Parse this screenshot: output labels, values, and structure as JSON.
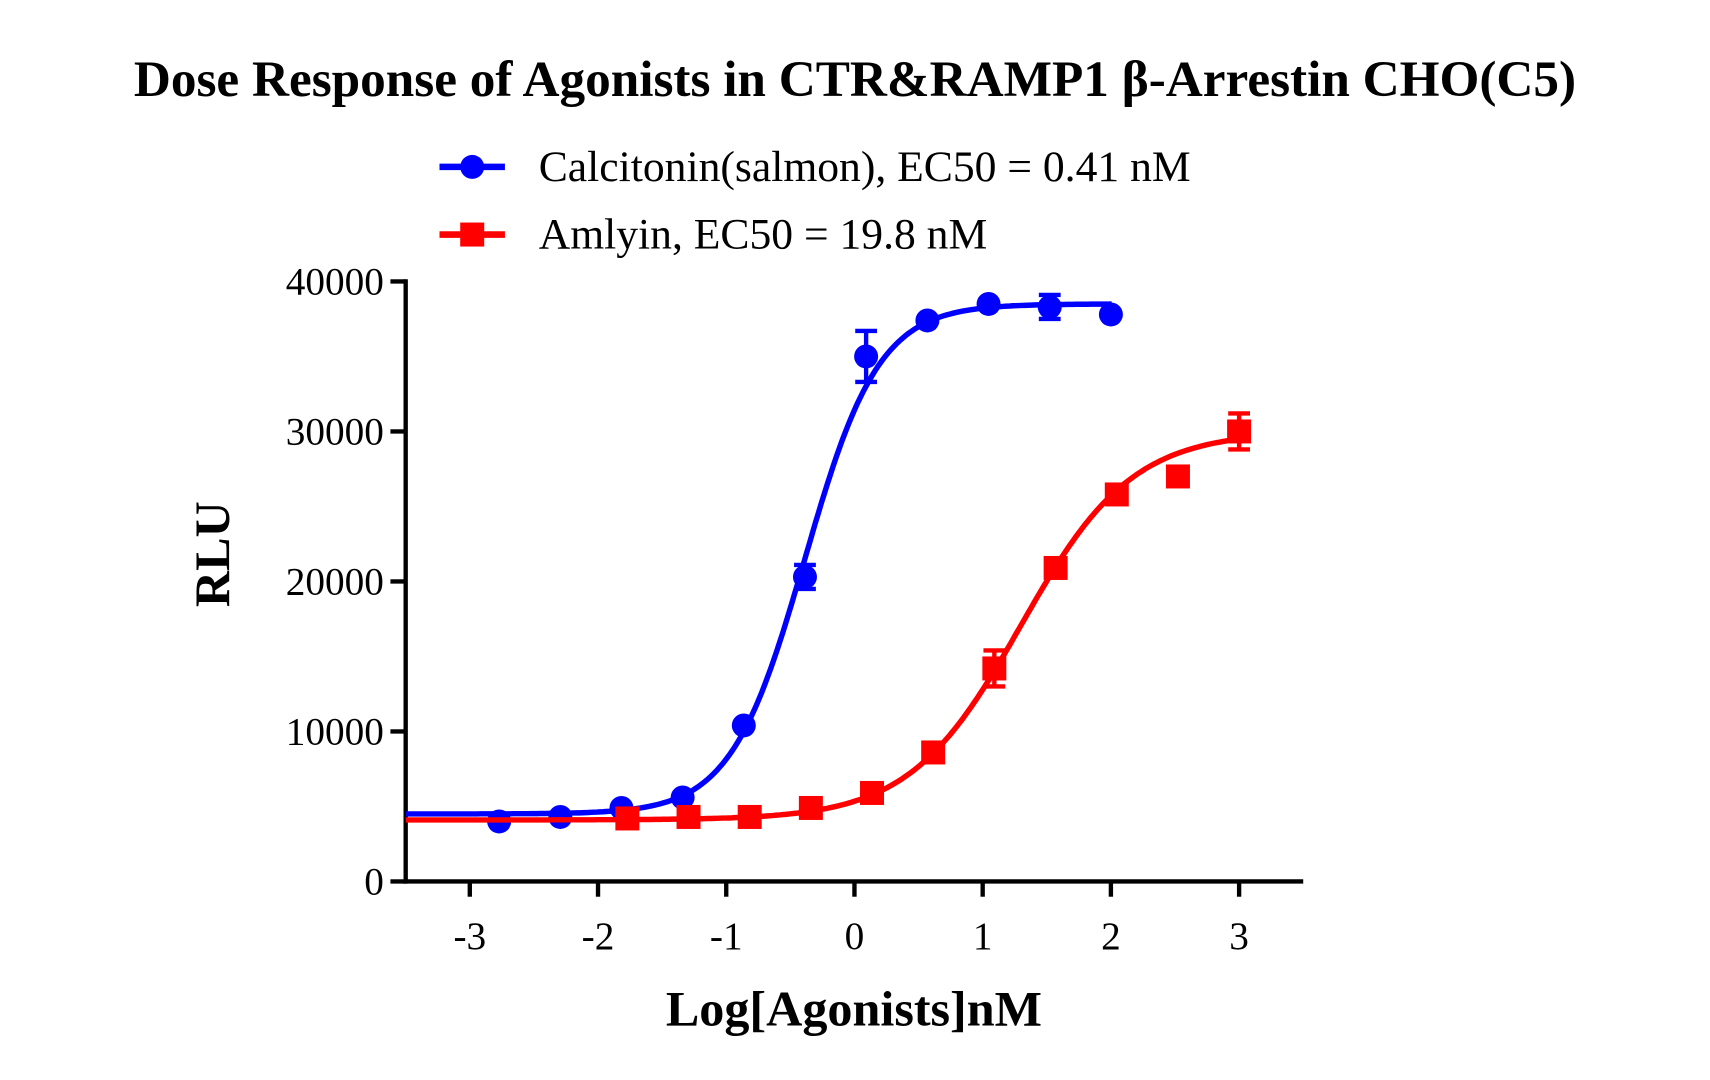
{
  "chart_data": {
    "type": "scatter",
    "title": "Dose Response of Agonists in CTR&RAMP1 β-Arrestin CHO(C5)",
    "xlabel": "Log[Agonists]nM",
    "ylabel": "RLU",
    "xlim": [
      -3.5,
      3.5
    ],
    "ylim": [
      0,
      40000
    ],
    "xticks": [
      -3,
      -2,
      -1,
      0,
      1,
      2,
      3
    ],
    "xtick_labels": [
      "-3",
      "-2",
      "-1",
      "0",
      "1",
      "2",
      "3"
    ],
    "yticks": [
      0,
      10000,
      20000,
      30000,
      40000
    ],
    "ytick_labels": [
      "0",
      "10000",
      "20000",
      "30000",
      "40000"
    ],
    "grid": false,
    "legend_position": "top",
    "series": [
      {
        "name": "Calcitonin(salmon), EC50 = 0.41 nM",
        "color": "#0000ff",
        "marker": "circle",
        "x": [
          -2.771,
          -2.294,
          -1.817,
          -1.34,
          -0.863,
          -0.386,
          0.091,
          0.569,
          1.046,
          1.523,
          2.0
        ],
        "y": [
          4000,
          4300,
          4900,
          5600,
          10400,
          20300,
          35000,
          37400,
          38500,
          38300,
          37800
        ],
        "error": [
          0,
          0,
          0,
          0,
          0,
          800,
          1700,
          0,
          0,
          800,
          0
        ],
        "fit": {
          "bottom": 4500,
          "top": 38500,
          "logEC50": -0.387,
          "hill": 1.5
        }
      },
      {
        "name": "Amlyin, EC50 = 19.8 nM",
        "color": "#ff0000",
        "marker": "square",
        "x": [
          -1.771,
          -1.294,
          -0.817,
          -0.34,
          0.137,
          0.614,
          1.091,
          1.569,
          2.046,
          2.523,
          3.0
        ],
        "y": [
          4200,
          4300,
          4300,
          4900,
          5900,
          8600,
          14200,
          20900,
          25800,
          27000,
          30000
        ],
        "error": [
          0,
          0,
          0,
          0,
          0,
          0,
          1200,
          0,
          600,
          0,
          1200
        ],
        "fit": {
          "bottom": 4100,
          "top": 30000,
          "logEC50": 1.297,
          "hill": 1.0
        }
      }
    ]
  }
}
